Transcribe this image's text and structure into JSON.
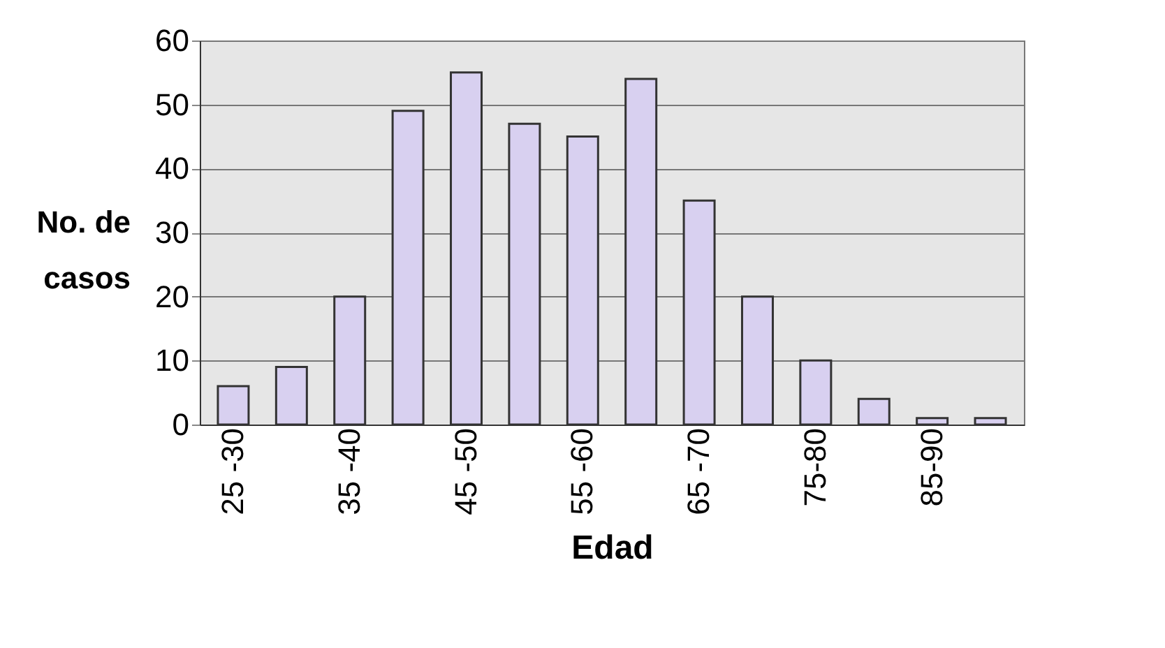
{
  "chart_data": {
    "type": "bar",
    "xlabel": "Edad",
    "ylabel": "No. de casos",
    "categories": [
      "25 -30",
      null,
      "35 -40",
      null,
      "45 -50",
      null,
      "55 -60",
      null,
      "65 -70",
      null,
      "75-80",
      null,
      "85-90",
      null
    ],
    "values": [
      6,
      9,
      20,
      49,
      55,
      47,
      45,
      54,
      35,
      20,
      10,
      4,
      1,
      1
    ],
    "color": "#d8d0f0",
    "ylim": [
      0,
      60
    ],
    "yticks": [
      0,
      10,
      20,
      30,
      40,
      50,
      60
    ],
    "grid": "y"
  }
}
